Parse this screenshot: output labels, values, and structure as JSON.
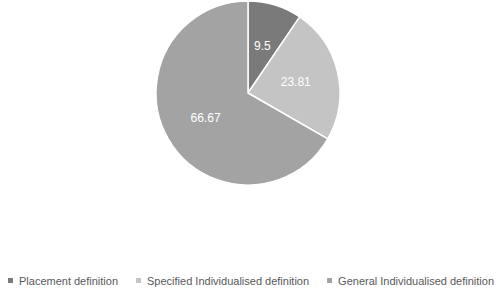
{
  "chart_data": {
    "type": "pie",
    "categories": [
      "Placement definition",
      "Specified Individualised definition",
      "General Individualised definition"
    ],
    "values": [
      9.5,
      23.81,
      66.67
    ],
    "colors": [
      "#7a7a7a",
      "#c4c4c4",
      "#a3a3a3"
    ],
    "data_labels": true,
    "legend": "bottom"
  }
}
